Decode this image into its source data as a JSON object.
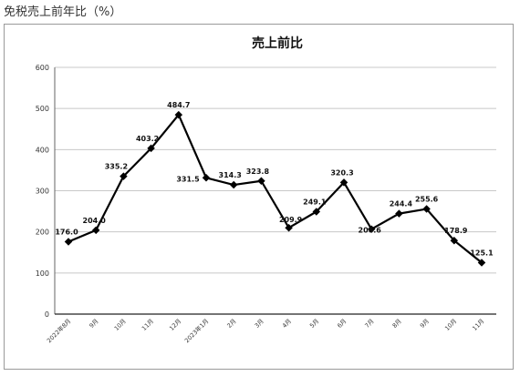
{
  "page": {
    "heading": "免税売上前年比（%）"
  },
  "colors": {
    "line": "#000000",
    "grid": "#c8c8c8",
    "frame": "#9a9a9a"
  },
  "chart_data": {
    "type": "line",
    "title": "売上前比",
    "xlabel": "",
    "ylabel": "",
    "ylim": [
      0,
      600
    ],
    "yticks": [
      0,
      100,
      200,
      300,
      400,
      500,
      600
    ],
    "grid": true,
    "legend": "none",
    "categories": [
      "2022年8月",
      "9月",
      "10月",
      "11月",
      "12月",
      "2023年1月",
      "2月",
      "3月",
      "4月",
      "5月",
      "6月",
      "7月",
      "8月",
      "9月",
      "10月",
      "11月"
    ],
    "series": [
      {
        "values": [
          176.0,
          204.0,
          335.2,
          403.2,
          484.7,
          331.5,
          314.3,
          323.8,
          209.9,
          249.1,
          320.3,
          206.6,
          244.4,
          255.6,
          178.9,
          125.1
        ],
        "labels": [
          "176.0",
          "204.0",
          "335.2",
          "403.2",
          "484.7",
          "331.5",
          "314.3",
          "323.8",
          "209.9",
          "249.1",
          "320.3",
          "206.6",
          "244.4",
          "255.6",
          "178.9",
          "125.1"
        ]
      }
    ]
  }
}
